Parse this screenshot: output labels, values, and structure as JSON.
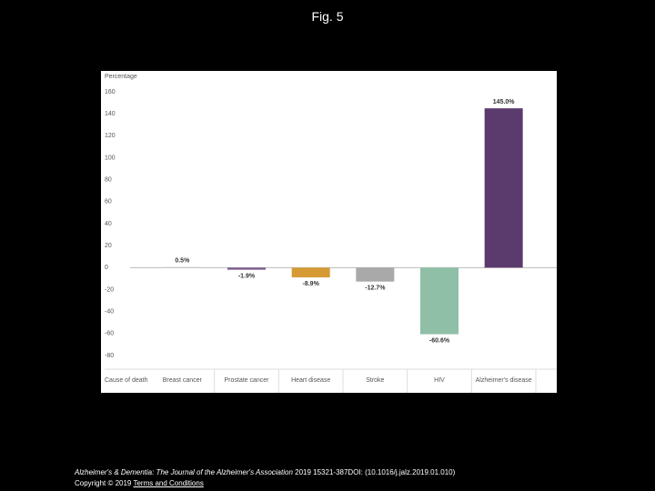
{
  "page": {
    "title": "Fig. 5"
  },
  "chart_data": {
    "type": "bar",
    "y_label": "Percentage",
    "x_label": "Cause of death",
    "categories": [
      "Breast cancer",
      "Prostate cancer",
      "Heart disease",
      "Stroke",
      "HIV",
      "Alzheimer's disease"
    ],
    "values": [
      0.5,
      -1.9,
      -8.9,
      -12.7,
      -60.6,
      145.0
    ],
    "value_labels": [
      "0.5%",
      "-1.9%",
      "-8.9%",
      "-12.7%",
      "-60.6%",
      "145.0%"
    ],
    "colors": [
      "#c8c8c8",
      "#7a5a8c",
      "#d69a35",
      "#a9a9a9",
      "#8fbfa6",
      "#5b3a6e"
    ],
    "ylim": [
      -80,
      160
    ],
    "yticks": [
      160,
      140,
      120,
      100,
      80,
      60,
      40,
      20,
      0,
      -20,
      -40,
      -60,
      -80
    ]
  },
  "footer": {
    "journal": "Alzheimer's & Dementia: The Journal of the Alzheimer's Association",
    "citation": "2019 15321-387DOI: (10.1016/j.jalz.2019.01.010)",
    "copyright": "Copyright © 2019",
    "terms": "Terms and Conditions"
  }
}
